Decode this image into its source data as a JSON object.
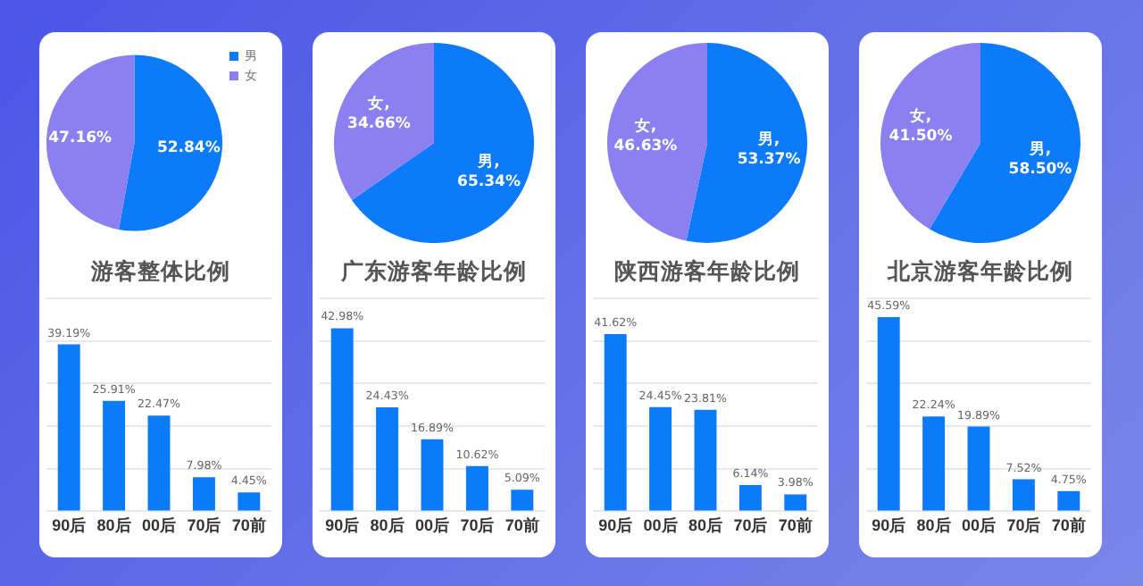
{
  "chart_data": [
    {
      "type": "pie",
      "categories": [
        "男",
        "女"
      ],
      "values": [
        52.84,
        47.16
      ],
      "colors": [
        "#0b7bfb",
        "#8a80f2"
      ],
      "value_labels": [
        "52.84%",
        "47.16%"
      ],
      "legend": "top right"
    },
    {
      "type": "bar",
      "title": "游客整体比例",
      "categories": [
        "90后",
        "80后",
        "00后",
        "70后",
        "70前"
      ],
      "values": [
        39.19,
        25.91,
        22.47,
        7.98,
        4.45
      ],
      "color": "#0b7bfb",
      "value_labels": [
        "39.19%",
        "25.91%",
        "22.47%",
        "7.98%",
        "4.45%"
      ],
      "grid": "y",
      "tick_labels": "x"
    },
    {
      "type": "pie",
      "categories": [
        "男",
        "女"
      ],
      "values": [
        65.34,
        34.66
      ],
      "colors": [
        "#0b7bfb",
        "#8a80f2"
      ],
      "value_labels": [
        ",\n65.34%",
        ",\n34.66%"
      ]
    },
    {
      "type": "bar",
      "title": "广东游客年龄比例",
      "categories": [
        "90后",
        "80后",
        "00后",
        "70后",
        "70前"
      ],
      "values": [
        42.98,
        24.43,
        16.89,
        10.62,
        5.09
      ],
      "color": "#0b7bfb",
      "value_labels": [
        "42.98%",
        "24.43%",
        "16.89%",
        "10.62%",
        "5.09%"
      ],
      "grid": "y",
      "tick_labels": "x"
    },
    {
      "type": "pie",
      "categories": [
        "男",
        "女"
      ],
      "values": [
        53.37,
        46.63
      ],
      "colors": [
        "#0b7bfb",
        "#8a80f2"
      ],
      "value_labels": [
        ",\n53.37%",
        ",\n46.63%"
      ]
    },
    {
      "type": "bar",
      "title": "陕西游客年龄比例",
      "categories": [
        "90后",
        "00后",
        "80后",
        "70后",
        "70前"
      ],
      "values": [
        41.62,
        24.45,
        23.81,
        6.14,
        3.98
      ],
      "color": "#0b7bfb",
      "value_labels": [
        "41.62%",
        "24.45%",
        "23.81%",
        "6.14%",
        "3.98%"
      ],
      "grid": "y",
      "tick_labels": "x"
    },
    {
      "type": "pie",
      "categories": [
        "男",
        "女"
      ],
      "values": [
        58.5,
        41.5
      ],
      "colors": [
        "#0b7bfb",
        "#8a80f2"
      ],
      "value_labels": [
        ",\n58.50%",
        ",\n41.50%"
      ]
    },
    {
      "type": "bar",
      "title": "北京游客年龄比例",
      "categories": [
        "90后",
        "80后",
        "00后",
        "70后",
        "70前"
      ],
      "values": [
        45.59,
        22.24,
        19.89,
        7.52,
        4.75
      ],
      "color": "#0b7bfb",
      "value_labels": [
        "45.59%",
        "22.24%",
        "19.89%",
        "7.52%",
        "4.75%"
      ],
      "grid": "y",
      "tick_labels": "x"
    }
  ]
}
